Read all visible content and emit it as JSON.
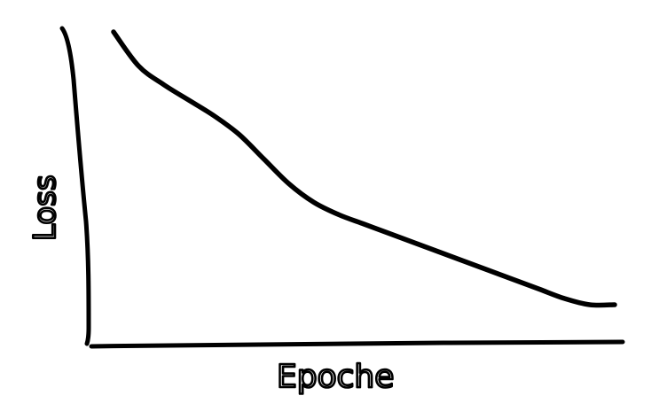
{
  "chart_data": {
    "type": "line",
    "title": "",
    "xlabel": "Epoche",
    "ylabel": "Loss",
    "xlim": [
      0,
      10
    ],
    "ylim": [
      0,
      10
    ],
    "grid": false,
    "legend": "none",
    "series": [
      {
        "x": [
          0.0,
          0.5,
          1.0,
          1.5,
          2.0,
          2.5,
          3.0,
          3.5,
          4.0,
          4.5,
          5.0,
          5.5,
          6.0,
          6.5,
          7.0,
          7.5,
          8.0,
          8.5,
          9.0,
          9.5,
          10.0
        ],
        "y": [
          9.6,
          8.5,
          7.9,
          7.4,
          6.9,
          6.3,
          5.5,
          4.7,
          4.1,
          3.7,
          3.4,
          3.1,
          2.8,
          2.5,
          2.2,
          1.9,
          1.6,
          1.3,
          1.0,
          0.8,
          0.8
        ]
      }
    ]
  },
  "colors": {
    "ink": "#000000",
    "background": "#ffffff"
  }
}
